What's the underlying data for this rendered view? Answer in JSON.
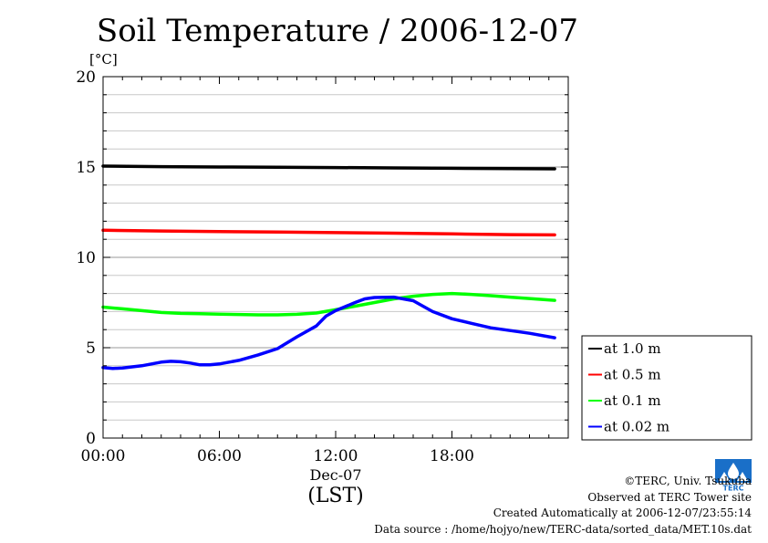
{
  "title": "Soil Temperature / 2006-12-07",
  "unit_label": "[°C]",
  "x_date_label": "Dec-07",
  "x_timezone_label": "(LST)",
  "credits": {
    "copyright": "©TERC, Univ. Tsukuba",
    "observed": "Observed at TERC Tower site",
    "created": "Created Automatically at 2006-12-07/23:55:14",
    "source": "Data source : /home/hojyo/new/TERC-data/sorted_data/MET.10s.dat"
  },
  "logo": {
    "name": "terc-logo",
    "text": "TERC",
    "color": "#1a6fc8"
  },
  "chart_data": {
    "type": "line",
    "title": "Soil Temperature / 2006-12-07",
    "ylabel": "[°C]",
    "xlabel": "(LST)",
    "xlim": [
      0,
      24
    ],
    "ylim": [
      0,
      20
    ],
    "x_ticks": [
      0,
      6,
      12,
      18
    ],
    "x_tick_labels": [
      "00:00",
      "06:00",
      "12:00",
      "18:00"
    ],
    "y_ticks": [
      0,
      5,
      10,
      15,
      20
    ],
    "y_tick_labels": [
      "0",
      "5",
      "10",
      "15",
      "20"
    ],
    "grid": true,
    "legend_position": "right",
    "series": [
      {
        "name": "at 1.0 m",
        "color": "#000000",
        "x": [
          0,
          3,
          6,
          9,
          12,
          15,
          18,
          21,
          23.3
        ],
        "y": [
          15.05,
          15.02,
          15.0,
          14.99,
          14.97,
          14.95,
          14.93,
          14.91,
          14.9
        ]
      },
      {
        "name": "at 0.5 m",
        "color": "#ff0000",
        "x": [
          0,
          3,
          6,
          9,
          12,
          15,
          18,
          21,
          23.3
        ],
        "y": [
          11.5,
          11.46,
          11.43,
          11.4,
          11.37,
          11.34,
          11.3,
          11.26,
          11.24
        ]
      },
      {
        "name": "at 0.1 m",
        "color": "#00ff00",
        "x": [
          0,
          1,
          2,
          3,
          4,
          5,
          6,
          7,
          8,
          9,
          10,
          11,
          12,
          13,
          14,
          15,
          16,
          17,
          18,
          19,
          20,
          21,
          22,
          23.3
        ],
        "y": [
          7.25,
          7.15,
          7.05,
          6.95,
          6.9,
          6.88,
          6.86,
          6.84,
          6.82,
          6.82,
          6.85,
          6.92,
          7.1,
          7.3,
          7.5,
          7.7,
          7.85,
          7.95,
          8.0,
          7.95,
          7.88,
          7.8,
          7.72,
          7.62
        ]
      },
      {
        "name": "at 0.02 m",
        "color": "#0000ff",
        "x": [
          0,
          0.5,
          1,
          2,
          3,
          3.5,
          4,
          4.5,
          5,
          5.5,
          6,
          7,
          8,
          9,
          10,
          11,
          11.5,
          12,
          13,
          13.5,
          14,
          15,
          16,
          17,
          18,
          19,
          20,
          21,
          22,
          23.3
        ],
        "y": [
          3.9,
          3.85,
          3.88,
          4.0,
          4.2,
          4.25,
          4.22,
          4.15,
          4.05,
          4.05,
          4.1,
          4.3,
          4.6,
          4.95,
          5.6,
          6.2,
          6.75,
          7.05,
          7.5,
          7.7,
          7.78,
          7.8,
          7.6,
          7.0,
          6.6,
          6.35,
          6.1,
          5.95,
          5.8,
          5.55
        ]
      }
    ]
  }
}
